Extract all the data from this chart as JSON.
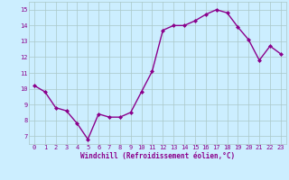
{
  "x": [
    0,
    1,
    2,
    3,
    4,
    5,
    6,
    7,
    8,
    9,
    10,
    11,
    12,
    13,
    14,
    15,
    16,
    17,
    18,
    19,
    20,
    21,
    22,
    23
  ],
  "y": [
    10.2,
    9.8,
    8.8,
    8.6,
    7.8,
    6.8,
    8.4,
    8.2,
    8.2,
    8.5,
    9.8,
    11.1,
    13.7,
    14.0,
    14.0,
    14.3,
    14.7,
    15.0,
    14.8,
    13.9,
    13.1,
    11.8,
    12.7,
    12.2
  ],
  "line_color": "#8B008B",
  "marker": "D",
  "marker_size": 2,
  "line_width": 1.0,
  "bg_color": "#cceeff",
  "grid_color": "#aac8c8",
  "xlabel": "Windchill (Refroidissement éolien,°C)",
  "xlabel_color": "#8B008B",
  "tick_color": "#8B008B",
  "ylim": [
    6.5,
    15.5
  ],
  "xlim": [
    -0.5,
    23.5
  ],
  "yticks": [
    7,
    8,
    9,
    10,
    11,
    12,
    13,
    14,
    15
  ],
  "xticks": [
    0,
    1,
    2,
    3,
    4,
    5,
    6,
    7,
    8,
    9,
    10,
    11,
    12,
    13,
    14,
    15,
    16,
    17,
    18,
    19,
    20,
    21,
    22,
    23
  ],
  "tick_fontsize": 5.0,
  "xlabel_fontsize": 5.5
}
